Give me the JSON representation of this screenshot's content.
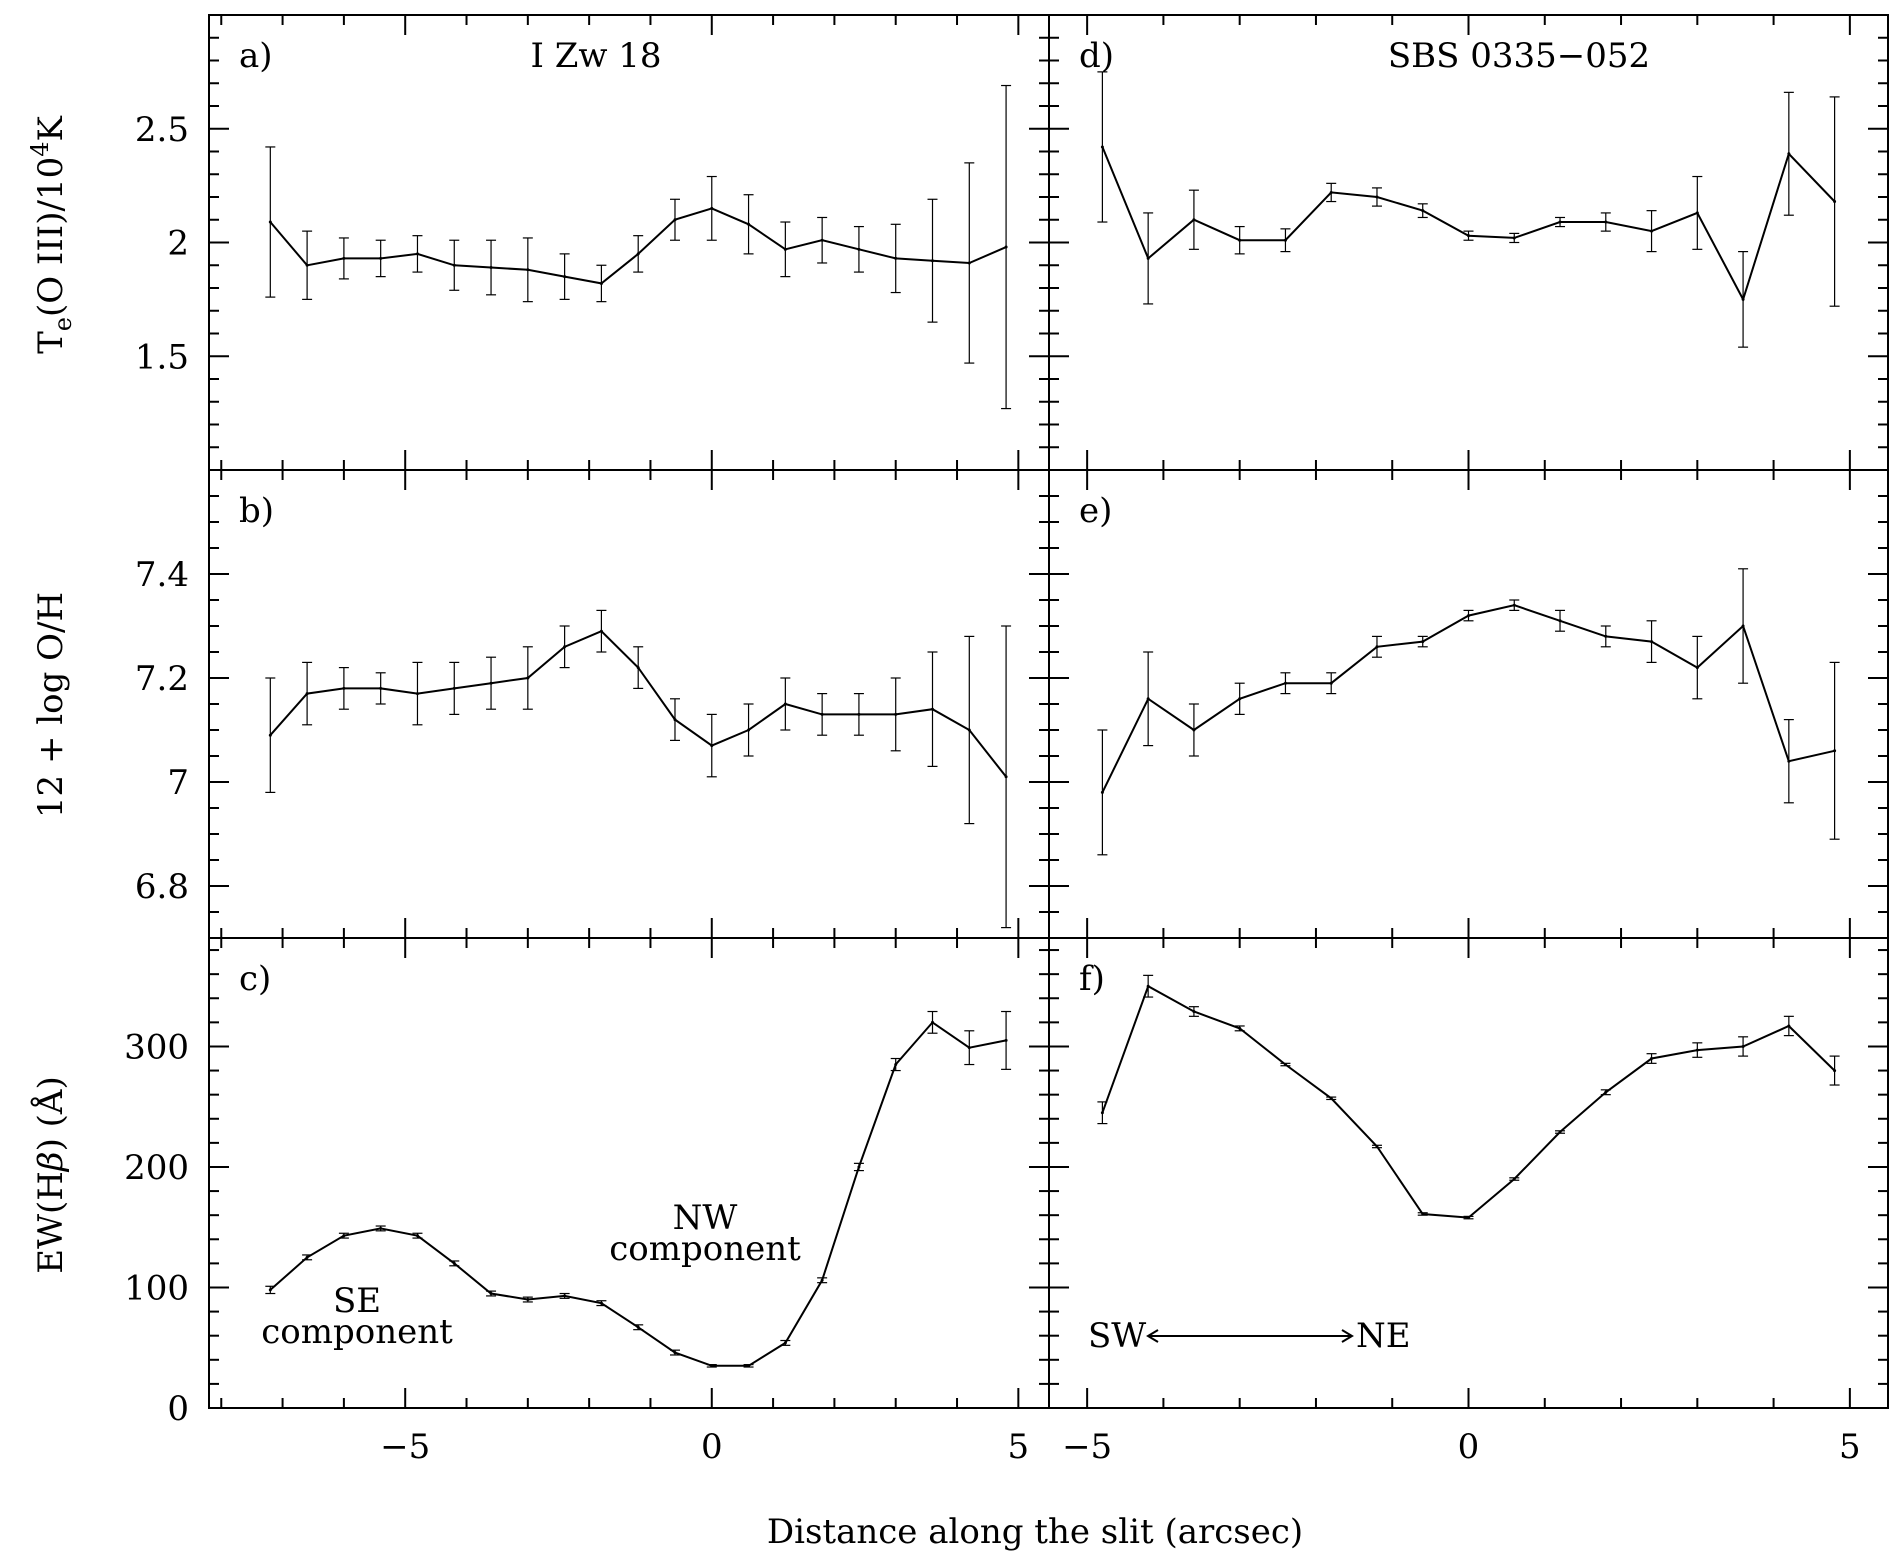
{
  "xlabel": "Distance along the slit (arcsec)",
  "columns": [
    "I Zw 18",
    "SBS 0335−052"
  ],
  "row_ylabels": {
    "te": {
      "pre": "T",
      "sub": "e",
      "mid": "(O III)/10",
      "sup": "4",
      "post": "K"
    },
    "oh": "12 + log O/H",
    "ew": {
      "pre": "EW(H",
      "greek": "β",
      "post": ") (Å)"
    }
  },
  "annotations": {
    "se": [
      "SE",
      "component"
    ],
    "nw": [
      "NW",
      "component"
    ],
    "sw": "SW",
    "ne": "NE"
  },
  "chart_data": [
    {
      "panel": "a)",
      "title": "I Zw 18",
      "type": "line",
      "error_bars": true,
      "xlim": [
        -8.2,
        5.5
      ],
      "ylim": [
        1.0,
        3.0
      ],
      "yticks": [
        1.5,
        2,
        2.5
      ],
      "ytick_labels": [
        "1.5",
        "2",
        "2.5"
      ],
      "xticks": [
        -5,
        0,
        5
      ],
      "xtick_labels": [
        "−5",
        "0",
        "5"
      ],
      "x": [
        -7.2,
        -6.6,
        -6.0,
        -5.4,
        -4.8,
        -4.2,
        -3.6,
        -3.0,
        -2.4,
        -1.8,
        -1.2,
        -0.6,
        0.0,
        0.6,
        1.2,
        1.8,
        2.4,
        3.0,
        3.6,
        4.2,
        4.8
      ],
      "y": [
        2.09,
        1.9,
        1.93,
        1.93,
        1.95,
        1.9,
        1.89,
        1.88,
        1.85,
        1.82,
        1.95,
        2.1,
        2.15,
        2.08,
        1.97,
        2.01,
        1.97,
        1.93,
        1.92,
        1.91,
        1.98
      ],
      "err": [
        0.33,
        0.15,
        0.09,
        0.08,
        0.08,
        0.11,
        0.12,
        0.14,
        0.1,
        0.08,
        0.08,
        0.09,
        0.14,
        0.13,
        0.12,
        0.1,
        0.1,
        0.15,
        0.27,
        0.44,
        0.71
      ]
    },
    {
      "panel": "b)",
      "title": "",
      "type": "line",
      "error_bars": true,
      "xlim": [
        -8.2,
        5.5
      ],
      "ylim": [
        6.7,
        7.6
      ],
      "yticks": [
        6.8,
        7,
        7.2,
        7.4
      ],
      "ytick_labels": [
        "6.8",
        "7",
        "7.2",
        "7.4"
      ],
      "xticks": [
        -5,
        0,
        5
      ],
      "xtick_labels": [
        "−5",
        "0",
        "5"
      ],
      "x": [
        -7.2,
        -6.6,
        -6.0,
        -5.4,
        -4.8,
        -4.2,
        -3.6,
        -3.0,
        -2.4,
        -1.8,
        -1.2,
        -0.6,
        0.0,
        0.6,
        1.2,
        1.8,
        2.4,
        3.0,
        3.6,
        4.2,
        4.8
      ],
      "y": [
        7.09,
        7.17,
        7.18,
        7.18,
        7.17,
        7.18,
        7.19,
        7.2,
        7.26,
        7.29,
        7.22,
        7.12,
        7.07,
        7.1,
        7.15,
        7.13,
        7.13,
        7.13,
        7.14,
        7.1,
        7.01
      ],
      "err": [
        0.11,
        0.06,
        0.04,
        0.03,
        0.06,
        0.05,
        0.05,
        0.06,
        0.04,
        0.04,
        0.04,
        0.04,
        0.06,
        0.05,
        0.05,
        0.04,
        0.04,
        0.07,
        0.11,
        0.18,
        0.29
      ]
    },
    {
      "panel": "c)",
      "title": "",
      "type": "line",
      "error_bars": true,
      "xlim": [
        -8.2,
        5.5
      ],
      "ylim": [
        0,
        390
      ],
      "yticks": [
        0,
        100,
        200,
        300
      ],
      "ytick_labels": [
        "0",
        "100",
        "200",
        "300"
      ],
      "xticks": [
        -5,
        0,
        5
      ],
      "xtick_labels": [
        "−5",
        "0",
        "5"
      ],
      "x": [
        -7.2,
        -6.6,
        -6.0,
        -5.4,
        -4.8,
        -4.2,
        -3.6,
        -3.0,
        -2.4,
        -1.8,
        -1.2,
        -0.6,
        0.0,
        0.6,
        1.2,
        1.8,
        2.4,
        3.0,
        3.6,
        4.2,
        4.8
      ],
      "y": [
        98,
        125,
        143,
        149,
        143,
        120,
        95,
        90,
        93,
        87,
        67,
        46,
        35,
        35,
        54,
        106,
        200,
        285,
        320,
        299,
        305
      ],
      "err": [
        3,
        2,
        2,
        2,
        2,
        2,
        2,
        2,
        2,
        2,
        2,
        2,
        1,
        1,
        2,
        2,
        3,
        5,
        9,
        14,
        24
      ]
    },
    {
      "panel": "d)",
      "title": "SBS 0335−052",
      "type": "line",
      "error_bars": true,
      "xlim": [
        -5.5,
        5.5
      ],
      "ylim": [
        1.0,
        3.0
      ],
      "yticks": [
        1.5,
        2,
        2.5
      ],
      "ytick_labels": [
        "1.5",
        "2",
        "2.5"
      ],
      "xticks": [
        -5,
        0,
        5
      ],
      "xtick_labels": [
        "−5",
        "0",
        "5"
      ],
      "x": [
        -4.8,
        -4.2,
        -3.6,
        -3.0,
        -2.4,
        -1.8,
        -1.2,
        -0.6,
        0.0,
        0.6,
        1.2,
        1.8,
        2.4,
        3.0,
        3.6,
        4.2,
        4.8
      ],
      "y": [
        2.42,
        1.93,
        2.1,
        2.01,
        2.01,
        2.22,
        2.2,
        2.14,
        2.03,
        2.02,
        2.09,
        2.09,
        2.05,
        2.13,
        1.75,
        2.39,
        2.18
      ],
      "err": [
        0.33,
        0.2,
        0.13,
        0.06,
        0.05,
        0.04,
        0.04,
        0.03,
        0.02,
        0.02,
        0.02,
        0.04,
        0.09,
        0.16,
        0.21,
        0.27,
        0.46
      ]
    },
    {
      "panel": "e)",
      "title": "",
      "type": "line",
      "error_bars": true,
      "xlim": [
        -5.5,
        5.5
      ],
      "ylim": [
        6.7,
        7.6
      ],
      "yticks": [
        6.8,
        7,
        7.2,
        7.4
      ],
      "ytick_labels": [
        "6.8",
        "7",
        "7.2",
        "7.4"
      ],
      "xticks": [
        -5,
        0,
        5
      ],
      "xtick_labels": [
        "−5",
        "0",
        "5"
      ],
      "x": [
        -4.8,
        -4.2,
        -3.6,
        -3.0,
        -2.4,
        -1.8,
        -1.2,
        -0.6,
        0.0,
        0.6,
        1.2,
        1.8,
        2.4,
        3.0,
        3.6,
        4.2,
        4.8
      ],
      "y": [
        6.98,
        7.16,
        7.1,
        7.16,
        7.19,
        7.19,
        7.26,
        7.27,
        7.32,
        7.34,
        7.31,
        7.28,
        7.27,
        7.22,
        7.3,
        7.04,
        7.06
      ],
      "err": [
        0.12,
        0.09,
        0.05,
        0.03,
        0.02,
        0.02,
        0.02,
        0.01,
        0.01,
        0.01,
        0.02,
        0.02,
        0.04,
        0.06,
        0.11,
        0.08,
        0.17
      ]
    },
    {
      "panel": "f)",
      "title": "",
      "type": "line",
      "error_bars": true,
      "xlim": [
        -5.5,
        5.5
      ],
      "ylim": [
        0,
        390
      ],
      "yticks": [
        0,
        100,
        200,
        300
      ],
      "ytick_labels": [
        "0",
        "100",
        "200",
        "300"
      ],
      "xticks": [
        -5,
        0,
        5
      ],
      "xtick_labels": [
        "−5",
        "0",
        "5"
      ],
      "x": [
        -4.8,
        -4.2,
        -3.6,
        -3.0,
        -2.4,
        -1.8,
        -1.2,
        -0.6,
        0.0,
        0.6,
        1.2,
        1.8,
        2.4,
        3.0,
        3.6,
        4.2,
        4.8
      ],
      "y": [
        245,
        350,
        329,
        315,
        285,
        257,
        217,
        161,
        158,
        190,
        229,
        262,
        290,
        297,
        300,
        317,
        280
      ],
      "err": [
        9,
        9,
        4,
        2,
        1,
        1,
        1,
        1,
        1,
        1,
        1,
        2,
        4,
        6,
        8,
        8,
        12
      ]
    }
  ]
}
